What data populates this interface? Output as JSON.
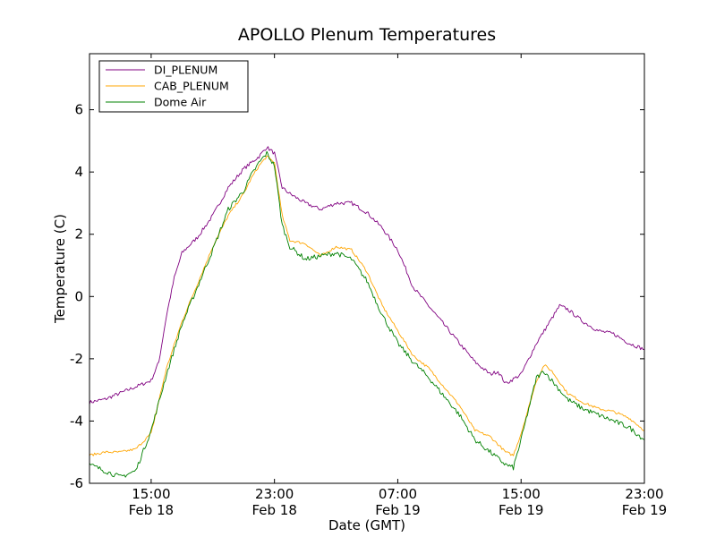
{
  "chart_data": {
    "type": "line",
    "title": "APOLLO Plenum Temperatures",
    "xlabel": "Date (GMT)",
    "ylabel": "Temperature (C)",
    "x_unit": "hours since Feb 18 00:00 GMT",
    "xlim": [
      11,
      47
    ],
    "ylim": [
      -6,
      7.8
    ],
    "grid": false,
    "legend_position": "top-left",
    "x_ticks": [
      {
        "x": 15,
        "time": "15:00",
        "date": "Feb 18"
      },
      {
        "x": 23,
        "time": "23:00",
        "date": "Feb 18"
      },
      {
        "x": 31,
        "time": "07:00",
        "date": "Feb 19"
      },
      {
        "x": 39,
        "time": "15:00",
        "date": "Feb 19"
      },
      {
        "x": 47,
        "time": "23:00",
        "date": "Feb 19"
      }
    ],
    "y_ticks": [
      {
        "value": -6,
        "label": "-6"
      },
      {
        "value": -4,
        "label": "-4"
      },
      {
        "value": -2,
        "label": "-2"
      },
      {
        "value": 0,
        "label": "0"
      },
      {
        "value": 2,
        "label": "2"
      },
      {
        "value": 4,
        "label": "4"
      },
      {
        "value": 6,
        "label": "6"
      }
    ],
    "series": [
      {
        "name": "DI_PLENUM",
        "color": "#800080",
        "x": [
          11,
          12,
          13,
          14,
          15,
          15.5,
          16,
          16.5,
          17,
          18,
          19,
          20,
          21,
          22,
          22.5,
          23,
          23.5,
          24,
          25,
          26,
          27,
          28,
          29,
          30,
          31,
          32,
          33,
          34,
          35,
          36,
          37,
          37.5,
          38,
          39,
          40,
          41,
          41.5,
          42,
          43,
          44,
          45,
          46,
          47
        ],
        "y": [
          -3.4,
          -3.3,
          -3.1,
          -2.9,
          -2.7,
          -2.1,
          -0.6,
          0.6,
          1.4,
          1.9,
          2.6,
          3.5,
          4.1,
          4.5,
          4.8,
          4.6,
          3.5,
          3.3,
          3.0,
          2.8,
          3.0,
          3.0,
          2.7,
          2.2,
          1.5,
          0.3,
          -0.3,
          -0.9,
          -1.5,
          -2.1,
          -2.5,
          -2.4,
          -2.8,
          -2.5,
          -1.5,
          -0.7,
          -0.3,
          -0.4,
          -0.8,
          -1.1,
          -1.2,
          -1.5,
          -1.7
        ]
      },
      {
        "name": "CAB_PLENUM",
        "color": "#FFA500",
        "x": [
          11,
          12,
          13,
          14,
          15,
          16,
          17,
          18,
          19,
          20,
          21,
          21.5,
          22,
          22.5,
          23,
          23.5,
          24,
          25,
          26,
          27,
          28,
          29,
          30,
          31,
          32,
          33,
          34,
          35,
          36,
          37,
          38,
          38.5,
          39,
          40,
          40.5,
          41,
          42,
          43,
          44,
          45,
          46,
          47
        ],
        "y": [
          -5.1,
          -5.0,
          -5.0,
          -4.9,
          -4.4,
          -2.3,
          -0.8,
          0.4,
          1.6,
          2.6,
          3.3,
          3.8,
          4.2,
          4.5,
          4.3,
          2.6,
          1.8,
          1.7,
          1.3,
          1.6,
          1.5,
          0.8,
          -0.3,
          -1.1,
          -1.9,
          -2.3,
          -2.9,
          -3.5,
          -4.3,
          -4.5,
          -5.0,
          -5.1,
          -4.4,
          -2.7,
          -2.2,
          -2.4,
          -3.1,
          -3.4,
          -3.6,
          -3.7,
          -3.9,
          -4.3
        ]
      },
      {
        "name": "Dome Air",
        "color": "#008000",
        "x": [
          11,
          12,
          13,
          14,
          15,
          16,
          17,
          18,
          19,
          20,
          21,
          21.5,
          22,
          22.5,
          23,
          23.5,
          24,
          25,
          26,
          27,
          28,
          29,
          30,
          31,
          32,
          33,
          34,
          35,
          36,
          37,
          38,
          38.5,
          39,
          40,
          40.5,
          41,
          42,
          43,
          44,
          45,
          46,
          47
        ],
        "y": [
          -5.4,
          -5.6,
          -5.8,
          -5.6,
          -4.3,
          -2.5,
          -0.9,
          0.3,
          1.5,
          2.8,
          3.4,
          3.9,
          4.3,
          4.6,
          4.2,
          2.3,
          1.6,
          1.2,
          1.3,
          1.4,
          1.2,
          0.5,
          -0.6,
          -1.5,
          -2.1,
          -2.6,
          -3.2,
          -3.8,
          -4.6,
          -5.0,
          -5.4,
          -5.5,
          -4.6,
          -2.6,
          -2.4,
          -2.7,
          -3.3,
          -3.6,
          -3.8,
          -4.0,
          -4.2,
          -4.6
        ]
      }
    ]
  }
}
